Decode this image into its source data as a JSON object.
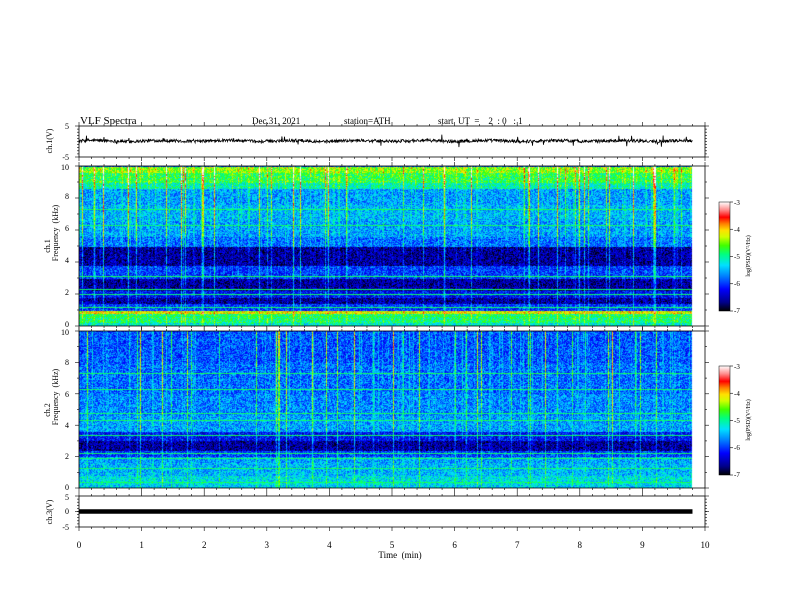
{
  "header": {
    "title": "VLF  Spectra",
    "date": "Dec.31, 2021",
    "station": "station=ATH",
    "start_ut": "start  UT  =    2  : 0   : 1"
  },
  "chart_data": [
    {
      "panel": "ch1-waveform",
      "type": "line",
      "ylabel": "ch.1(V)",
      "ylim": [
        -5,
        5
      ],
      "yticks": [
        "5",
        "-5"
      ],
      "xlim": [
        0,
        10
      ],
      "trace_end_min": 9.8,
      "trace_mean_V": 0.2,
      "trace_noise_V": 0.5,
      "color": "#000000"
    },
    {
      "panel": "ch1-spectrogram",
      "type": "heatmap",
      "ylabel": "Frequency  (kHz)",
      "channel_label": "ch.1",
      "ylim": [
        0,
        10
      ],
      "yticks": [
        "0",
        "2",
        "4",
        "6",
        "8",
        "10"
      ],
      "xlim": [
        0,
        10
      ],
      "data_end_min": 9.8,
      "colorbar": {
        "label": "log(PSD)(V²/Hz)",
        "ticks": [
          "-3",
          "-4",
          "-5",
          "-6",
          "-7"
        ],
        "range": [
          -7,
          -3
        ]
      },
      "bands": [
        {
          "from_kHz": 0.0,
          "to_kHz": 0.2,
          "level": -5.2
        },
        {
          "from_kHz": 0.2,
          "to_kHz": 0.8,
          "level": -4.9
        },
        {
          "from_kHz": 0.8,
          "to_kHz": 1.0,
          "level": -4.2
        },
        {
          "from_kHz": 1.0,
          "to_kHz": 1.4,
          "level": -6.0
        },
        {
          "from_kHz": 1.4,
          "to_kHz": 1.8,
          "level": -6.6
        },
        {
          "from_kHz": 1.8,
          "to_kHz": 2.2,
          "level": -6.2
        },
        {
          "from_kHz": 2.2,
          "to_kHz": 3.0,
          "level": -6.6
        },
        {
          "from_kHz": 3.0,
          "to_kHz": 3.8,
          "level": -6.0
        },
        {
          "from_kHz": 3.8,
          "to_kHz": 5.0,
          "level": -6.6
        },
        {
          "from_kHz": 5.0,
          "to_kHz": 5.6,
          "level": -5.8
        },
        {
          "from_kHz": 5.6,
          "to_kHz": 6.6,
          "level": -5.6
        },
        {
          "from_kHz": 6.6,
          "to_kHz": 7.6,
          "level": -5.5
        },
        {
          "from_kHz": 7.6,
          "to_kHz": 8.6,
          "level": -5.6
        },
        {
          "from_kHz": 8.6,
          "to_kHz": 9.0,
          "level": -5.1
        },
        {
          "from_kHz": 9.0,
          "to_kHz": 9.6,
          "level": -4.8
        },
        {
          "from_kHz": 9.6,
          "to_kHz": 10.0,
          "level": -4.5
        }
      ],
      "lines_kHz": [
        0.6,
        0.9,
        1.2,
        2.0,
        2.3,
        3.1,
        6.3,
        7.3
      ]
    },
    {
      "panel": "ch2-spectrogram",
      "type": "heatmap",
      "ylabel": "Frequency  (kHz)",
      "channel_label": "ch.2",
      "ylim": [
        0,
        10
      ],
      "yticks": [
        "0",
        "2",
        "4",
        "6",
        "8",
        "10"
      ],
      "xlim": [
        0,
        10
      ],
      "data_end_min": 9.8,
      "colorbar": {
        "label": "log(PSD)(V²/Hz)",
        "ticks": [
          "-3",
          "-4",
          "-5",
          "-6",
          "-7"
        ],
        "range": [
          -7,
          -3
        ]
      },
      "bands": [
        {
          "from_kHz": 0.0,
          "to_kHz": 0.2,
          "level": -5.4
        },
        {
          "from_kHz": 0.2,
          "to_kHz": 0.8,
          "level": -5.3
        },
        {
          "from_kHz": 0.8,
          "to_kHz": 1.6,
          "level": -5.5
        },
        {
          "from_kHz": 1.6,
          "to_kHz": 2.0,
          "level": -5.6
        },
        {
          "from_kHz": 2.0,
          "to_kHz": 2.4,
          "level": -6.0
        },
        {
          "from_kHz": 2.4,
          "to_kHz": 3.0,
          "level": -6.6
        },
        {
          "from_kHz": 3.0,
          "to_kHz": 3.6,
          "level": -6.2
        },
        {
          "from_kHz": 3.6,
          "to_kHz": 4.6,
          "level": -5.6
        },
        {
          "from_kHz": 4.6,
          "to_kHz": 6.0,
          "level": -5.7
        },
        {
          "from_kHz": 6.0,
          "to_kHz": 8.0,
          "level": -5.8
        },
        {
          "from_kHz": 8.0,
          "to_kHz": 10.0,
          "level": -5.9
        }
      ],
      "lines_kHz": [
        0.4,
        1.3,
        1.9,
        2.2,
        3.4,
        4.3,
        4.8,
        6.3,
        7.3
      ]
    },
    {
      "panel": "ch3-waveform",
      "type": "line",
      "ylabel": "ch.3(V)",
      "ylim": [
        -5,
        5
      ],
      "yticks": [
        "5",
        "0",
        "-5"
      ],
      "xlim": [
        0,
        10
      ],
      "xticks": [
        "0",
        "1",
        "2",
        "3",
        "4",
        "5",
        "6",
        "7",
        "8",
        "9",
        "10"
      ],
      "xlabel": "Time  (min)",
      "trace_end_min": 9.8,
      "trace_level_V": 0.0,
      "color": "#000000"
    }
  ]
}
